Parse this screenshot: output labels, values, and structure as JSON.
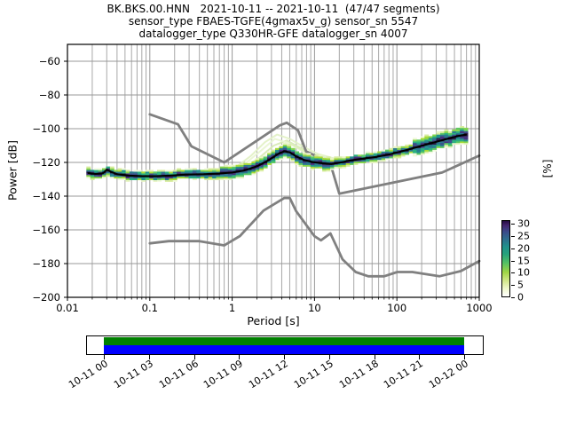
{
  "figure": {
    "title_line1": "BK.BKS.00.HNN   2021-10-11 -- 2021-10-11  (47/47 segments)",
    "title_line2": "sensor_type FBAES-TGFE(4gmax5v_g) sensor_sn 5547",
    "title_line3": "datalogger_type Q330HR-GFE datalogger_sn 4007"
  },
  "chart_data": {
    "type": "heatmap",
    "subtype": "ppsd-probabilistic-power-spectral-density",
    "title": "BK.BKS.00.HNN   2021-10-11 -- 2021-10-11  (47/47 segments)",
    "xlabel": "Period [s]",
    "ylabel": "Power [dB]",
    "colorbar_label": "[%]",
    "x_scale": "log",
    "xlim": [
      0.01,
      1000
    ],
    "ylim": [
      -200,
      -50
    ],
    "grid": true,
    "x_ticks": {
      "values": [
        0.01,
        0.1,
        1,
        10,
        100,
        1000
      ],
      "labels": [
        "0.01",
        "0.1",
        "1",
        "10",
        "100",
        "1000"
      ]
    },
    "y_ticks": {
      "values": [
        -60,
        -80,
        -100,
        -120,
        -140,
        -160,
        -180,
        -200
      ],
      "labels": [
        "−60",
        "−80",
        "−100",
        "−120",
        "−140",
        "−160",
        "−180",
        "−200"
      ]
    },
    "colorbar": {
      "min": 0,
      "max": 31.6,
      "ticks": [
        0,
        5,
        10,
        15,
        20,
        25,
        30
      ],
      "tick_labels": [
        "0",
        "5",
        "10",
        "15",
        "20",
        "25",
        "30"
      ],
      "gradient": [
        [
          0,
          "#ffffff"
        ],
        [
          10,
          "#f1f9cf"
        ],
        [
          20,
          "#d5e88f"
        ],
        [
          32,
          "#a0d545"
        ],
        [
          44,
          "#55c163"
        ],
        [
          56,
          "#25a27b"
        ],
        [
          66,
          "#21918c"
        ],
        [
          76,
          "#2e6e8e"
        ],
        [
          86,
          "#3b4a89"
        ],
        [
          94,
          "#44256e"
        ],
        [
          100,
          "#250a40"
        ]
      ]
    },
    "noise_models": {
      "color": "#808080",
      "nhnm": [
        [
          0.1,
          -91.5
        ],
        [
          0.22,
          -97.4
        ],
        [
          0.32,
          -110.5
        ],
        [
          0.8,
          -120.0
        ],
        [
          3.8,
          -98.0
        ],
        [
          4.6,
          -96.5
        ],
        [
          6.3,
          -101.0
        ],
        [
          7.9,
          -113.5
        ],
        [
          15.4,
          -120.0
        ],
        [
          20.0,
          -138.5
        ],
        [
          354.8,
          -126.0
        ],
        [
          1000,
          -116.0
        ]
      ],
      "nlnm": [
        [
          0.1,
          -168.0
        ],
        [
          0.17,
          -166.7
        ],
        [
          0.4,
          -166.7
        ],
        [
          0.8,
          -169.2
        ],
        [
          1.24,
          -163.7
        ],
        [
          2.4,
          -148.6
        ],
        [
          4.3,
          -141.1
        ],
        [
          5.0,
          -141.1
        ],
        [
          6.0,
          -149.0
        ],
        [
          10.0,
          -163.8
        ],
        [
          12.0,
          -166.2
        ],
        [
          15.6,
          -162.1
        ],
        [
          21.9,
          -177.5
        ],
        [
          31.6,
          -185.0
        ],
        [
          45.0,
          -187.5
        ],
        [
          70.0,
          -187.5
        ],
        [
          101.0,
          -185.0
        ],
        [
          154.0,
          -185.0
        ],
        [
          328.0,
          -187.5
        ],
        [
          600.0,
          -184.4
        ],
        [
          1000,
          -178.5
        ]
      ]
    },
    "mean_curve": {
      "color": "#000000",
      "points": [
        [
          0.018,
          -126.3
        ],
        [
          0.022,
          -126.8
        ],
        [
          0.027,
          -126.5
        ],
        [
          0.03,
          -124.3
        ],
        [
          0.034,
          -125.6
        ],
        [
          0.04,
          -127.0
        ],
        [
          0.055,
          -127.8
        ],
        [
          0.08,
          -128.2
        ],
        [
          0.12,
          -128.2
        ],
        [
          0.18,
          -127.8
        ],
        [
          0.28,
          -127.2
        ],
        [
          0.45,
          -127.0
        ],
        [
          0.7,
          -126.6
        ],
        [
          1.0,
          -126.0
        ],
        [
          1.4,
          -124.8
        ],
        [
          2.0,
          -122.3
        ],
        [
          2.8,
          -118.6
        ],
        [
          3.6,
          -115.0
        ],
        [
          4.3,
          -113.4
        ],
        [
          5.0,
          -114.0
        ],
        [
          6.0,
          -116.4
        ],
        [
          7.5,
          -118.6
        ],
        [
          9.5,
          -119.8
        ],
        [
          12.0,
          -120.4
        ],
        [
          16.0,
          -120.9
        ],
        [
          20.0,
          -120.2
        ],
        [
          27.0,
          -118.9
        ],
        [
          38.0,
          -117.8
        ],
        [
          55.0,
          -116.8
        ],
        [
          80.0,
          -115.3
        ],
        [
          115.0,
          -113.4
        ],
        [
          160.0,
          -111.5
        ],
        [
          230.0,
          -109.3
        ],
        [
          330.0,
          -107.2
        ],
        [
          470.0,
          -105.2
        ],
        [
          600.0,
          -104.0
        ],
        [
          690.0,
          -103.6
        ]
      ]
    },
    "psd_distribution": {
      "period_range": [
        0.018,
        690
      ],
      "bins": 96,
      "spread_db_short_period": 3,
      "spread_db_microseism": 4,
      "spread_db_mid": 3,
      "spread_db_long_period": 5,
      "palette": [
        [
          "#1c1033",
          "#271245",
          "#2c1e4a"
        ],
        [
          "#46327e",
          "#3d4e8a",
          "#2a788e"
        ],
        [
          "#2a788e",
          "#21918c",
          "#2ab07f"
        ],
        [
          "#5ec962",
          "#86d549",
          "#a8db34"
        ],
        [
          "#d8ec9f",
          "#e8f4c4",
          "#f2f9dd"
        ]
      ]
    },
    "faint_traces": {
      "colors": [
        "#e3f1c6",
        "#d7eab4",
        "#cde4a6",
        "#e9f5d2",
        "#dcedbb"
      ],
      "lines": [
        [
          [
            1.1,
            -123.0
          ],
          [
            1.7,
            -116.0
          ],
          [
            2.5,
            -108.0
          ],
          [
            3.5,
            -103.5
          ],
          [
            5.0,
            -106.0
          ],
          [
            7.5,
            -111.0
          ],
          [
            11.0,
            -115.0
          ],
          [
            17.0,
            -117.5
          ],
          [
            25.0,
            -118.5
          ]
        ],
        [
          [
            1.3,
            -124.0
          ],
          [
            2.1,
            -117.5
          ],
          [
            3.2,
            -110.0
          ],
          [
            4.6,
            -107.0
          ],
          [
            6.5,
            -111.0
          ],
          [
            10.0,
            -115.5
          ],
          [
            15.0,
            -118.0
          ],
          [
            22.0,
            -119.3
          ]
        ],
        [
          [
            1.6,
            -125.0
          ],
          [
            2.6,
            -118.0
          ],
          [
            4.0,
            -111.5
          ],
          [
            6.0,
            -114.0
          ],
          [
            9.0,
            -117.5
          ],
          [
            14.0,
            -119.5
          ],
          [
            20.0,
            -120.0
          ]
        ],
        [
          [
            0.9,
            -125.5
          ],
          [
            1.5,
            -120.0
          ],
          [
            2.3,
            -112.5
          ],
          [
            3.3,
            -106.0
          ],
          [
            4.8,
            -108.5
          ],
          [
            7.0,
            -113.0
          ],
          [
            11.0,
            -117.0
          ],
          [
            16.0,
            -119.0
          ]
        ],
        [
          [
            2.2,
            -121.0
          ],
          [
            3.4,
            -113.0
          ],
          [
            5.2,
            -109.0
          ],
          [
            8.0,
            -114.0
          ],
          [
            12.0,
            -118.0
          ]
        ]
      ]
    }
  },
  "timeline": {
    "tick_labels": [
      "10-11 00",
      "10-11 03",
      "10-11 06",
      "10-11 09",
      "10-11 12",
      "10-11 15",
      "10-11 18",
      "10-11 21",
      "10-12 00"
    ],
    "coverage": {
      "processed_color": "#008000",
      "data_color": "#0000ff"
    }
  }
}
